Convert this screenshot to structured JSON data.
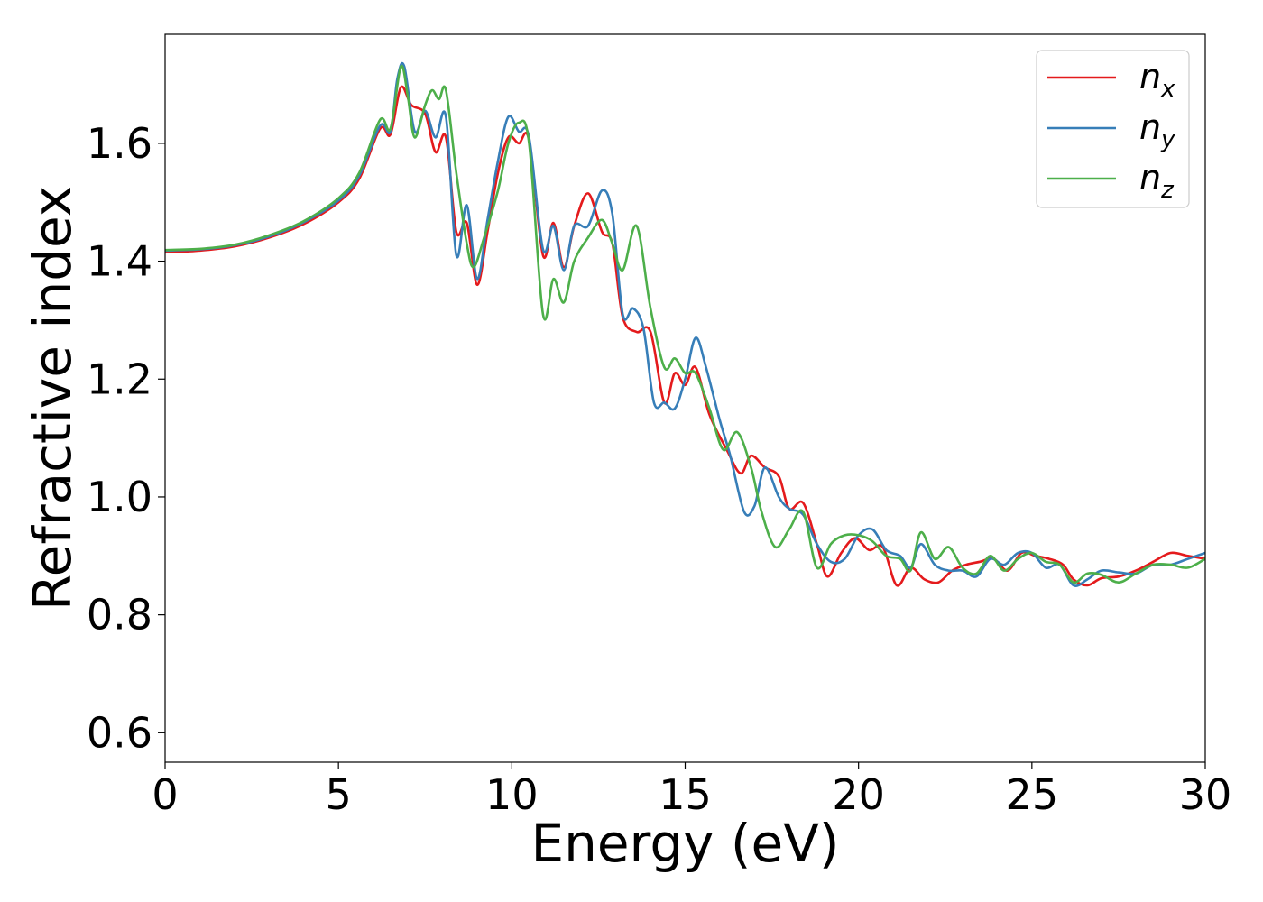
{
  "chart_data": {
    "type": "line",
    "xlabel": "Energy (eV)",
    "ylabel": "Refractive index",
    "xlim": [
      0,
      30
    ],
    "ylim": [
      0.55,
      1.785
    ],
    "x_ticks": [
      0,
      5,
      10,
      15,
      20,
      25,
      30
    ],
    "y_ticks": [
      0.6,
      0.8,
      1.0,
      1.2,
      1.4,
      1.6
    ],
    "x_tick_labels": [
      "0",
      "5",
      "10",
      "15",
      "20",
      "25",
      "30"
    ],
    "y_tick_labels": [
      "0.6",
      "0.8",
      "1.0",
      "1.2",
      "1.4",
      "1.6"
    ],
    "grid": false,
    "legend_position": "top-right",
    "series": [
      {
        "name": "n_x",
        "label_base": "n",
        "label_sub": "x",
        "color": "#e41a1c",
        "points": [
          [
            0,
            1.415
          ],
          [
            1,
            1.418
          ],
          [
            2,
            1.425
          ],
          [
            3,
            1.44
          ],
          [
            4,
            1.463
          ],
          [
            5,
            1.5
          ],
          [
            5.6,
            1.54
          ],
          [
            6.2,
            1.625
          ],
          [
            6.5,
            1.615
          ],
          [
            6.8,
            1.695
          ],
          [
            7.1,
            1.665
          ],
          [
            7.5,
            1.65
          ],
          [
            7.8,
            1.585
          ],
          [
            8.1,
            1.61
          ],
          [
            8.4,
            1.45
          ],
          [
            8.7,
            1.465
          ],
          [
            9.0,
            1.36
          ],
          [
            9.3,
            1.45
          ],
          [
            9.6,
            1.55
          ],
          [
            9.9,
            1.61
          ],
          [
            10.2,
            1.6
          ],
          [
            10.5,
            1.605
          ],
          [
            10.9,
            1.41
          ],
          [
            11.2,
            1.465
          ],
          [
            11.5,
            1.39
          ],
          [
            11.8,
            1.46
          ],
          [
            12.2,
            1.515
          ],
          [
            12.6,
            1.45
          ],
          [
            12.9,
            1.43
          ],
          [
            13.2,
            1.305
          ],
          [
            13.6,
            1.28
          ],
          [
            14.0,
            1.28
          ],
          [
            14.4,
            1.16
          ],
          [
            14.7,
            1.21
          ],
          [
            15.0,
            1.19
          ],
          [
            15.3,
            1.22
          ],
          [
            15.7,
            1.14
          ],
          [
            16.2,
            1.08
          ],
          [
            16.6,
            1.04
          ],
          [
            16.9,
            1.07
          ],
          [
            17.3,
            1.05
          ],
          [
            17.7,
            1.035
          ],
          [
            18.0,
            0.98
          ],
          [
            18.4,
            0.99
          ],
          [
            18.8,
            0.92
          ],
          [
            19.1,
            0.865
          ],
          [
            19.5,
            0.905
          ],
          [
            19.9,
            0.93
          ],
          [
            20.3,
            0.91
          ],
          [
            20.7,
            0.915
          ],
          [
            21.1,
            0.85
          ],
          [
            21.5,
            0.88
          ],
          [
            21.9,
            0.86
          ],
          [
            22.3,
            0.855
          ],
          [
            22.7,
            0.875
          ],
          [
            23.1,
            0.885
          ],
          [
            23.5,
            0.89
          ],
          [
            23.9,
            0.895
          ],
          [
            24.3,
            0.875
          ],
          [
            24.7,
            0.905
          ],
          [
            25.1,
            0.9
          ],
          [
            25.5,
            0.895
          ],
          [
            25.9,
            0.885
          ],
          [
            26.2,
            0.86
          ],
          [
            26.6,
            0.85
          ],
          [
            27.0,
            0.862
          ],
          [
            27.5,
            0.865
          ],
          [
            28.0,
            0.875
          ],
          [
            28.5,
            0.89
          ],
          [
            29.0,
            0.905
          ],
          [
            29.5,
            0.9
          ],
          [
            30,
            0.895
          ]
        ]
      },
      {
        "name": "n_y",
        "label_base": "n",
        "label_sub": "y",
        "color": "#377eb8",
        "points": [
          [
            0,
            1.418
          ],
          [
            1,
            1.42
          ],
          [
            2,
            1.427
          ],
          [
            3,
            1.442
          ],
          [
            4,
            1.466
          ],
          [
            5,
            1.503
          ],
          [
            5.6,
            1.545
          ],
          [
            6.2,
            1.63
          ],
          [
            6.5,
            1.62
          ],
          [
            6.7,
            1.71
          ],
          [
            6.9,
            1.73
          ],
          [
            7.2,
            1.62
          ],
          [
            7.5,
            1.655
          ],
          [
            7.8,
            1.61
          ],
          [
            8.1,
            1.645
          ],
          [
            8.4,
            1.41
          ],
          [
            8.7,
            1.495
          ],
          [
            9.0,
            1.37
          ],
          [
            9.3,
            1.47
          ],
          [
            9.6,
            1.57
          ],
          [
            9.9,
            1.645
          ],
          [
            10.2,
            1.62
          ],
          [
            10.5,
            1.61
          ],
          [
            10.9,
            1.42
          ],
          [
            11.2,
            1.46
          ],
          [
            11.5,
            1.385
          ],
          [
            11.8,
            1.46
          ],
          [
            12.2,
            1.46
          ],
          [
            12.6,
            1.52
          ],
          [
            12.9,
            1.48
          ],
          [
            13.2,
            1.31
          ],
          [
            13.5,
            1.32
          ],
          [
            13.8,
            1.285
          ],
          [
            14.1,
            1.16
          ],
          [
            14.4,
            1.16
          ],
          [
            14.7,
            1.15
          ],
          [
            15.0,
            1.2
          ],
          [
            15.3,
            1.27
          ],
          [
            15.6,
            1.22
          ],
          [
            16.0,
            1.13
          ],
          [
            16.3,
            1.07
          ],
          [
            16.7,
            0.975
          ],
          [
            17.0,
            0.985
          ],
          [
            17.3,
            1.05
          ],
          [
            17.7,
            1.0
          ],
          [
            18.0,
            0.98
          ],
          [
            18.4,
            0.97
          ],
          [
            18.8,
            0.92
          ],
          [
            19.2,
            0.89
          ],
          [
            19.6,
            0.895
          ],
          [
            20.0,
            0.935
          ],
          [
            20.4,
            0.945
          ],
          [
            20.8,
            0.91
          ],
          [
            21.2,
            0.9
          ],
          [
            21.5,
            0.88
          ],
          [
            21.8,
            0.92
          ],
          [
            22.2,
            0.885
          ],
          [
            22.6,
            0.875
          ],
          [
            23.0,
            0.875
          ],
          [
            23.4,
            0.865
          ],
          [
            23.8,
            0.895
          ],
          [
            24.2,
            0.885
          ],
          [
            24.6,
            0.905
          ],
          [
            25.0,
            0.905
          ],
          [
            25.4,
            0.88
          ],
          [
            25.8,
            0.885
          ],
          [
            26.2,
            0.85
          ],
          [
            26.6,
            0.86
          ],
          [
            27.0,
            0.875
          ],
          [
            27.5,
            0.872
          ],
          [
            28.0,
            0.87
          ],
          [
            28.5,
            0.885
          ],
          [
            29.0,
            0.885
          ],
          [
            29.5,
            0.895
          ],
          [
            30,
            0.905
          ]
        ]
      },
      {
        "name": "n_z",
        "label_base": "n",
        "label_sub": "z",
        "color": "#4daf4a",
        "points": [
          [
            0,
            1.419
          ],
          [
            1,
            1.421
          ],
          [
            2,
            1.428
          ],
          [
            3,
            1.444
          ],
          [
            4,
            1.468
          ],
          [
            5,
            1.507
          ],
          [
            5.6,
            1.55
          ],
          [
            6.2,
            1.64
          ],
          [
            6.5,
            1.625
          ],
          [
            6.8,
            1.73
          ],
          [
            7.0,
            1.68
          ],
          [
            7.2,
            1.61
          ],
          [
            7.5,
            1.665
          ],
          [
            7.7,
            1.69
          ],
          [
            7.9,
            1.675
          ],
          [
            8.1,
            1.69
          ],
          [
            8.4,
            1.55
          ],
          [
            8.7,
            1.43
          ],
          [
            8.9,
            1.39
          ],
          [
            9.2,
            1.44
          ],
          [
            9.6,
            1.52
          ],
          [
            9.9,
            1.6
          ],
          [
            10.2,
            1.635
          ],
          [
            10.5,
            1.6
          ],
          [
            10.9,
            1.31
          ],
          [
            11.2,
            1.37
          ],
          [
            11.5,
            1.33
          ],
          [
            11.8,
            1.4
          ],
          [
            12.2,
            1.44
          ],
          [
            12.6,
            1.47
          ],
          [
            12.9,
            1.43
          ],
          [
            13.2,
            1.385
          ],
          [
            13.6,
            1.46
          ],
          [
            14.0,
            1.32
          ],
          [
            14.4,
            1.22
          ],
          [
            14.7,
            1.235
          ],
          [
            15.0,
            1.21
          ],
          [
            15.3,
            1.21
          ],
          [
            15.7,
            1.15
          ],
          [
            16.1,
            1.08
          ],
          [
            16.5,
            1.11
          ],
          [
            16.9,
            1.05
          ],
          [
            17.2,
            0.975
          ],
          [
            17.6,
            0.915
          ],
          [
            18.0,
            0.945
          ],
          [
            18.4,
            0.975
          ],
          [
            18.8,
            0.88
          ],
          [
            19.2,
            0.92
          ],
          [
            19.6,
            0.935
          ],
          [
            20.0,
            0.935
          ],
          [
            20.4,
            0.925
          ],
          [
            20.8,
            0.9
          ],
          [
            21.2,
            0.895
          ],
          [
            21.5,
            0.875
          ],
          [
            21.8,
            0.94
          ],
          [
            22.2,
            0.895
          ],
          [
            22.6,
            0.915
          ],
          [
            23.0,
            0.88
          ],
          [
            23.4,
            0.87
          ],
          [
            23.8,
            0.9
          ],
          [
            24.2,
            0.875
          ],
          [
            24.6,
            0.895
          ],
          [
            25.0,
            0.905
          ],
          [
            25.4,
            0.89
          ],
          [
            25.8,
            0.885
          ],
          [
            26.2,
            0.855
          ],
          [
            26.6,
            0.87
          ],
          [
            27.0,
            0.868
          ],
          [
            27.5,
            0.855
          ],
          [
            28.0,
            0.87
          ],
          [
            28.5,
            0.885
          ],
          [
            29.0,
            0.885
          ],
          [
            29.5,
            0.88
          ],
          [
            30,
            0.895
          ]
        ]
      }
    ]
  }
}
